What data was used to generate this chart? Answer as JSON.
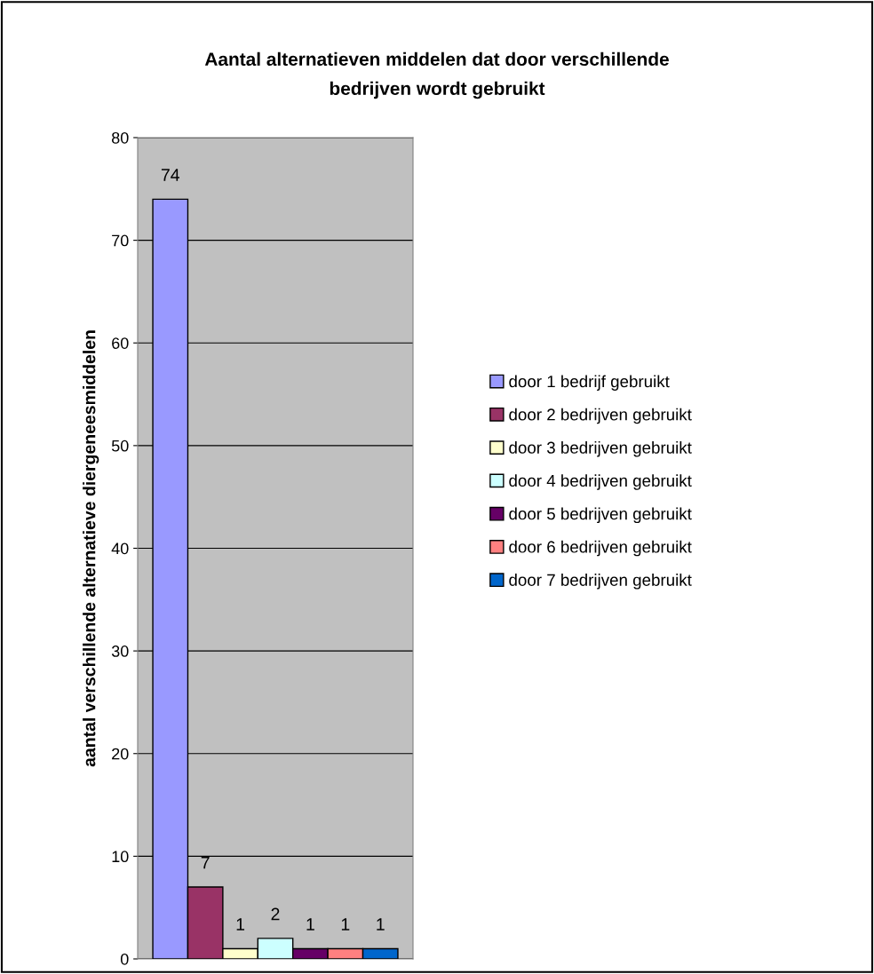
{
  "chart_data": {
    "type": "bar",
    "title": "Aantal alternatieven middelen dat door verschillende\nbedrijven wordt gebruikt",
    "ylabel": "aantal verschillende alternatieve diergeneesmiddelen",
    "categories": [
      null
    ],
    "series": [
      {
        "name": "door 1 bedrijf gebruikt",
        "color": "#9999ff",
        "values": [
          74
        ]
      },
      {
        "name": "door 2 bedrijven gebruikt",
        "color": "#993366",
        "values": [
          7
        ]
      },
      {
        "name": "door 3 bedrijven gebruikt",
        "color": "#ffffcc",
        "values": [
          1
        ]
      },
      {
        "name": "door 4 bedrijven gebruikt",
        "color": "#ccffff",
        "values": [
          2
        ]
      },
      {
        "name": "door 5 bedrijven gebruikt",
        "color": "#660066",
        "values": [
          1
        ]
      },
      {
        "name": "door 6 bedrijven gebruikt",
        "color": "#ff8080",
        "values": [
          1
        ]
      },
      {
        "name": "door 7 bedrijven gebruikt",
        "color": "#0066cc",
        "values": [
          1
        ]
      }
    ],
    "ylim": [
      0,
      80
    ],
    "yticks": [
      0,
      10,
      20,
      30,
      40,
      50,
      60,
      70,
      80
    ],
    "grid": "y",
    "legend": "right",
    "data_labels": true
  }
}
